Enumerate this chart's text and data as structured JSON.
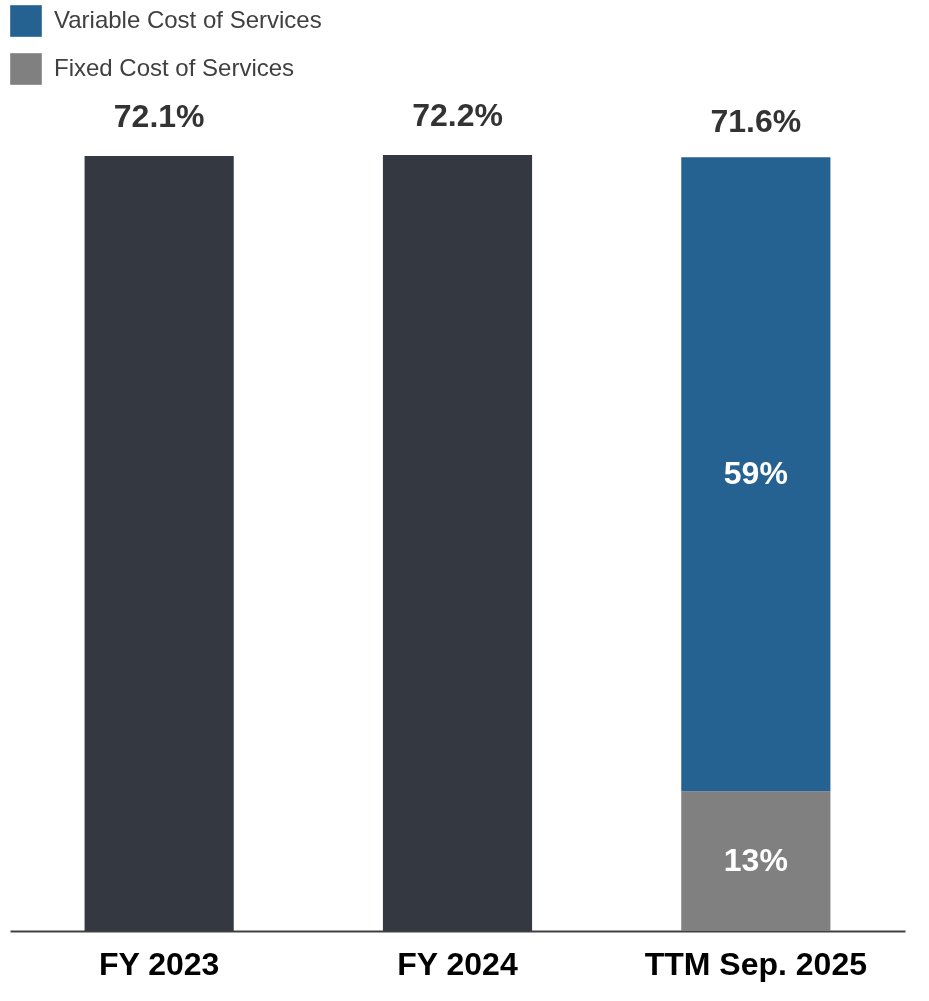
{
  "chart_data": {
    "type": "bar",
    "stacked": true,
    "legend": "top left",
    "categories": [
      "FY 2023",
      "FY 2024",
      "TTM Sep. 2025"
    ],
    "series": [
      {
        "color": "#343840",
        "values": [
          72.1,
          72.2,
          null
        ],
        "value_labels": [
          "72.1%",
          "72.2%",
          null
        ]
      },
      {
        "name": "Fixed Cost of Services",
        "color": "#808080",
        "values": [
          null,
          null,
          13
        ],
        "value_labels": [
          null,
          null,
          "13%"
        ]
      },
      {
        "name": "Variable Cost of Services",
        "color": "#256291",
        "values": [
          null,
          null,
          59
        ],
        "value_labels": [
          null,
          null,
          "59%"
        ]
      }
    ],
    "annotations": [
      {
        "text": "71.6%",
        "x": "TTM Sep. 2025",
        "y": 71.6
      }
    ]
  }
}
